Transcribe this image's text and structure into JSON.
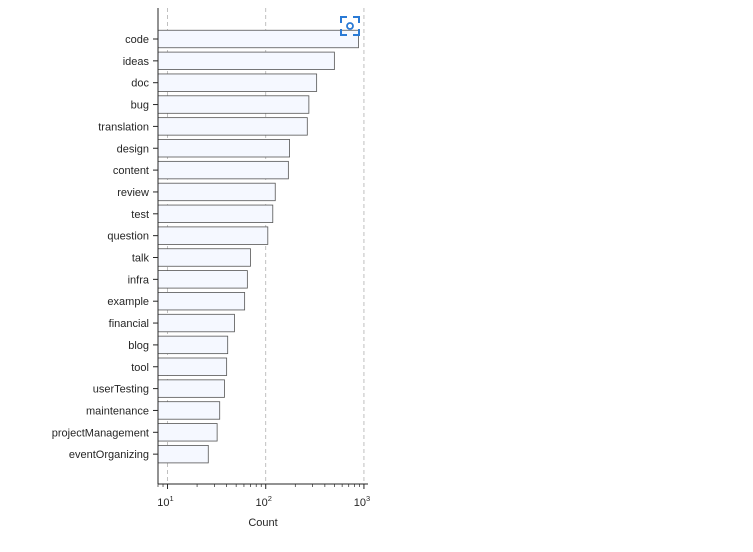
{
  "chart_data": {
    "type": "bar",
    "orientation": "horizontal",
    "title": "",
    "xlabel": "Count",
    "ylabel": "",
    "x_scale": "log",
    "xlim": [
      8,
      1100
    ],
    "x_ticks": [
      {
        "value": 10,
        "base": "10",
        "exp": "1"
      },
      {
        "value": 100,
        "base": "10",
        "exp": "2"
      },
      {
        "value": 1000,
        "base": "10",
        "exp": "3"
      }
    ],
    "grid": "vertical dashed at major ticks",
    "bar_color": "#f5f8ff",
    "edge_color": "#555555",
    "categories": [
      "code",
      "ideas",
      "doc",
      "bug",
      "translation",
      "design",
      "content",
      "review",
      "test",
      "question",
      "talk",
      "infra",
      "example",
      "financial",
      "blog",
      "tool",
      "userTesting",
      "maintenance",
      "projectManagement",
      "eventOrganizing"
    ],
    "values": [
      880,
      500,
      330,
      275,
      265,
      175,
      170,
      125,
      118,
      105,
      70,
      65,
      61,
      48,
      41,
      40,
      38,
      34,
      32,
      26
    ]
  },
  "toolbar": {
    "focus_icon": "focus-icon"
  }
}
